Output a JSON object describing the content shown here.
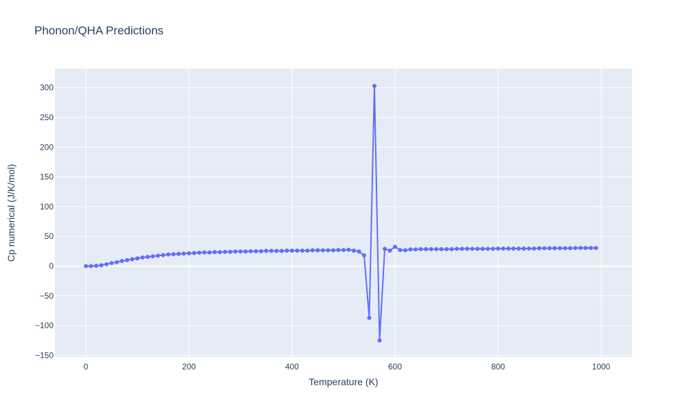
{
  "chart_data": {
    "type": "line",
    "title": "Phonon/QHA Predictions",
    "xlabel": "Temperature (K)",
    "ylabel": "Cp numerical (J/K/mol)",
    "xlim": [
      -60,
      1060
    ],
    "ylim": [
      -153,
      332
    ],
    "xticks": [
      0,
      200,
      400,
      600,
      800,
      1000
    ],
    "yticks": [
      -150,
      -100,
      -50,
      0,
      50,
      100,
      150,
      200,
      250,
      300
    ],
    "xtick_labels": [
      "0",
      "200",
      "400",
      "600",
      "800",
      "1000"
    ],
    "ytick_labels": [
      "−150",
      "−100",
      "−50",
      "0",
      "50",
      "100",
      "150",
      "200",
      "250",
      "300"
    ],
    "grid": true,
    "series": [
      {
        "color": "#636efa",
        "x": [
          0,
          10,
          20,
          30,
          40,
          50,
          60,
          70,
          80,
          90,
          100,
          110,
          120,
          130,
          140,
          150,
          160,
          170,
          180,
          190,
          200,
          210,
          220,
          230,
          240,
          250,
          260,
          270,
          280,
          290,
          300,
          310,
          320,
          330,
          340,
          350,
          360,
          370,
          380,
          390,
          400,
          410,
          420,
          430,
          440,
          450,
          460,
          470,
          480,
          490,
          500,
          510,
          520,
          530,
          540,
          550,
          560,
          570,
          580,
          590,
          600,
          610,
          620,
          630,
          640,
          650,
          660,
          670,
          680,
          690,
          700,
          710,
          720,
          730,
          740,
          750,
          760,
          770,
          780,
          790,
          800,
          810,
          820,
          830,
          840,
          850,
          860,
          870,
          880,
          890,
          900,
          910,
          920,
          930,
          940,
          950,
          960,
          970,
          980,
          990
        ],
        "y": [
          0,
          0,
          0.5,
          1.5,
          3,
          5,
          6.5,
          8.5,
          10,
          11.5,
          13,
          14.5,
          15.5,
          16.5,
          17.5,
          18.5,
          19.5,
          20,
          20.5,
          21,
          21.5,
          22,
          22.5,
          23,
          23,
          23.5,
          23.5,
          24,
          24,
          24.5,
          24.5,
          24.5,
          25,
          25,
          25,
          25.5,
          25.5,
          25.5,
          25.5,
          26,
          26,
          26,
          26,
          26,
          26.5,
          26.5,
          26.5,
          26.5,
          26.5,
          27,
          27,
          27.5,
          26,
          24.5,
          18,
          -87,
          303,
          -125,
          29,
          26,
          32.5,
          27,
          26.5,
          28,
          28,
          28.5,
          28.5,
          28.5,
          28.5,
          28.5,
          28.5,
          28.5,
          29,
          29,
          29,
          29,
          29,
          29,
          29,
          29,
          29.5,
          29.5,
          29.5,
          29.5,
          29.5,
          29.5,
          29.5,
          29.5,
          30,
          30,
          30,
          30,
          30,
          30,
          30,
          30.5,
          30.5,
          30.5,
          30.5,
          30.5
        ]
      }
    ]
  }
}
